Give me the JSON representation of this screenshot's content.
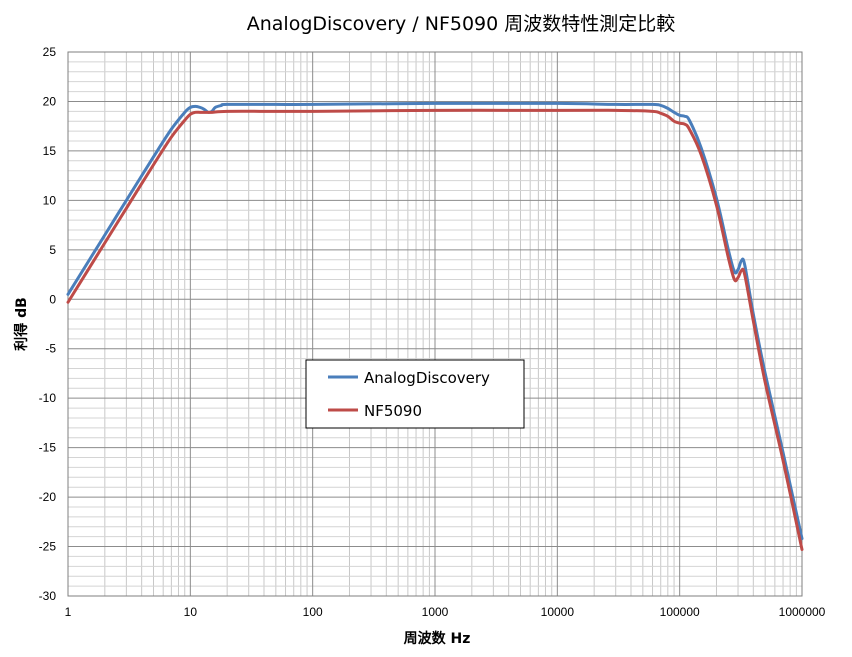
{
  "chart_data": {
    "type": "line",
    "title": "AnalogDiscovery / NF5090 周波数特性測定比較",
    "xlabel": "周波数 Hz",
    "ylabel": "利得 dB",
    "x_scale": "log",
    "xlim": [
      1,
      1000000
    ],
    "ylim": [
      -30,
      25
    ],
    "x_ticks": [
      "1",
      "10",
      "100",
      "1000",
      "10000",
      "100000",
      "1000000"
    ],
    "y_ticks": [
      "25",
      "20",
      "15",
      "10",
      "5",
      "0",
      "-5",
      "-10",
      "-15",
      "-20",
      "-25",
      "-30"
    ],
    "grid": true,
    "legend_position": "center-left",
    "series": [
      {
        "name": "AnalogDiscovery",
        "color": "#4a7ebb",
        "x": [
          1,
          2,
          3,
          5,
          7,
          9,
          10,
          11,
          12,
          13,
          14,
          15,
          16,
          18,
          20,
          50,
          100,
          1000,
          10000,
          30000,
          60000,
          70000,
          80000,
          90000,
          100000,
          110000,
          120000,
          150000,
          200000,
          250000,
          280000,
          300000,
          320000,
          340000,
          400000,
          500000,
          700000,
          1000000
        ],
        "y": [
          0.5,
          6.5,
          10.0,
          14.4,
          17.2,
          18.9,
          19.4,
          19.5,
          19.4,
          19.2,
          18.9,
          19.0,
          19.4,
          19.6,
          19.7,
          19.7,
          19.7,
          19.8,
          19.8,
          19.7,
          19.7,
          19.6,
          19.3,
          18.9,
          18.6,
          18.5,
          18.1,
          15.3,
          10.2,
          5.0,
          2.8,
          3.0,
          3.9,
          3.5,
          -1.5,
          -7.5,
          -15.5,
          -24.2
        ]
      },
      {
        "name": "NF5090",
        "color": "#be4b48",
        "x": [
          1,
          2,
          3,
          5,
          7,
          9,
          10,
          11,
          12,
          13,
          15,
          20,
          50,
          100,
          1000,
          10000,
          30000,
          60000,
          70000,
          80000,
          90000,
          100000,
          110000,
          120000,
          150000,
          200000,
          250000,
          280000,
          300000,
          320000,
          340000,
          400000,
          500000,
          700000,
          1000000
        ],
        "y": [
          -0.3,
          5.7,
          9.2,
          13.6,
          16.4,
          18.1,
          18.7,
          18.9,
          18.9,
          18.9,
          18.9,
          19.0,
          19.0,
          19.0,
          19.1,
          19.1,
          19.1,
          19.0,
          18.8,
          18.5,
          18.0,
          17.8,
          17.7,
          17.2,
          14.6,
          9.5,
          4.2,
          2.0,
          2.2,
          2.9,
          2.5,
          -2.2,
          -8.4,
          -16.3,
          -25.3
        ]
      }
    ]
  }
}
